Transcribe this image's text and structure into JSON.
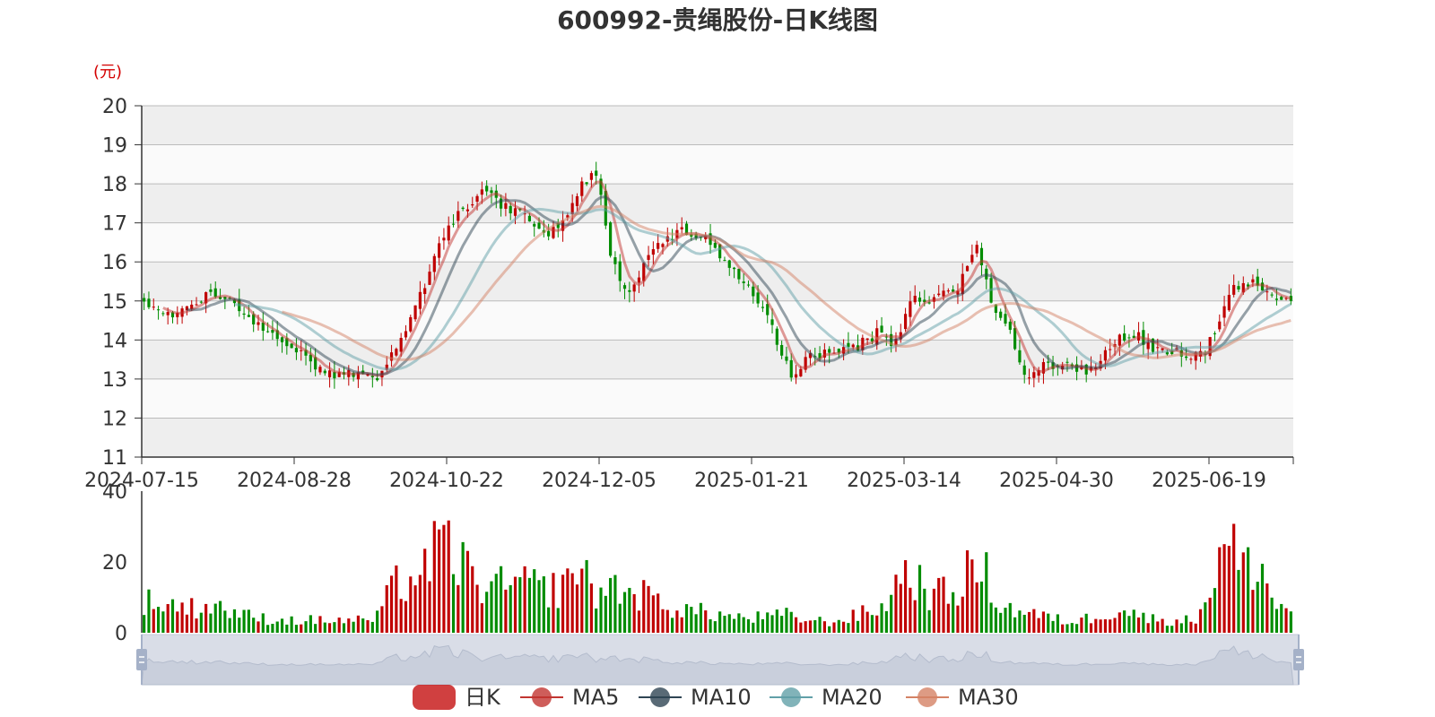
{
  "colors": {
    "up": "#c00000",
    "down": "#008c00",
    "ma5": "#c23531",
    "ma10": "#2f4554",
    "ma20": "#61a0a8",
    "ma30": "#d48265",
    "band_dark": "#eeeeee",
    "band_light": "#fafafa",
    "axis": "#333333",
    "grid": "#bbbbbb",
    "slider_fill": "#d9dde7",
    "unit": "#d40000"
  },
  "chart_data": {
    "type": "candlestick",
    "title": "600992-贵绳股份-日K线图",
    "price_unit": "(元)",
    "price_axis": {
      "min": 11,
      "max": 20,
      "ticks": [
        "11",
        "12",
        "13",
        "14",
        "15",
        "16",
        "17",
        "18",
        "19",
        "20"
      ]
    },
    "volume_axis": {
      "min": 0,
      "max": 40,
      "ticks": [
        "0",
        "20",
        "40"
      ]
    },
    "x_tick_labels": [
      "2024-07-15",
      "2024-08-28",
      "2024-10-22",
      "2024-12-05",
      "2025-01-21",
      "2025-03-14",
      "2025-04-30",
      "2025-06-19"
    ],
    "trading_days": 242,
    "price_anchors": [
      [
        0,
        15.0
      ],
      [
        6,
        14.6
      ],
      [
        12,
        15.0
      ],
      [
        18,
        15.2
      ],
      [
        24,
        14.8
      ],
      [
        30,
        14.2
      ],
      [
        36,
        13.9
      ],
      [
        42,
        13.3
      ],
      [
        48,
        13.1
      ],
      [
        54,
        13.1
      ],
      [
        58,
        13.0
      ],
      [
        63,
        14.0
      ],
      [
        68,
        15.0
      ],
      [
        73,
        16.5
      ],
      [
        78,
        17.2
      ],
      [
        84,
        17.9
      ],
      [
        88,
        17.5
      ],
      [
        94,
        17.2
      ],
      [
        100,
        16.7
      ],
      [
        104,
        17.0
      ],
      [
        108,
        18.0
      ],
      [
        112,
        18.2
      ],
      [
        116,
        16.0
      ],
      [
        120,
        15.1
      ],
      [
        126,
        16.4
      ],
      [
        132,
        16.8
      ],
      [
        138,
        16.7
      ],
      [
        144,
        16.0
      ],
      [
        150,
        15.3
      ],
      [
        156,
        14.2
      ],
      [
        160,
        13.1
      ],
      [
        164,
        13.5
      ],
      [
        170,
        13.7
      ],
      [
        176,
        13.8
      ],
      [
        182,
        14.2
      ],
      [
        186,
        13.9
      ],
      [
        190,
        15.1
      ],
      [
        196,
        15.0
      ],
      [
        202,
        15.4
      ],
      [
        206,
        16.5
      ],
      [
        210,
        15.0
      ],
      [
        214,
        14.3
      ],
      [
        218,
        13.0
      ],
      [
        222,
        13.4
      ],
      [
        228,
        13.3
      ],
      [
        234,
        13.2
      ],
      [
        240,
        14.0
      ],
      [
        246,
        14.1
      ],
      [
        250,
        13.8
      ],
      [
        256,
        13.7
      ],
      [
        262,
        13.6
      ],
      [
        266,
        14.5
      ],
      [
        270,
        15.3
      ],
      [
        276,
        15.5
      ],
      [
        280,
        15.0
      ],
      [
        284,
        15.0
      ]
    ],
    "volume_anchors": [
      [
        0,
        9
      ],
      [
        6,
        8
      ],
      [
        12,
        7
      ],
      [
        18,
        8
      ],
      [
        24,
        5
      ],
      [
        30,
        4
      ],
      [
        36,
        3.5
      ],
      [
        42,
        3.5
      ],
      [
        48,
        3.5
      ],
      [
        54,
        3.5
      ],
      [
        58,
        4
      ],
      [
        62,
        13
      ],
      [
        68,
        16
      ],
      [
        72,
        22
      ],
      [
        76,
        24
      ],
      [
        80,
        18
      ],
      [
        86,
        12
      ],
      [
        92,
        14
      ],
      [
        98,
        13
      ],
      [
        104,
        12
      ],
      [
        108,
        20
      ],
      [
        112,
        11
      ],
      [
        116,
        13
      ],
      [
        120,
        12
      ],
      [
        126,
        10
      ],
      [
        132,
        7
      ],
      [
        138,
        6
      ],
      [
        144,
        5
      ],
      [
        150,
        4
      ],
      [
        156,
        4.5
      ],
      [
        160,
        5
      ],
      [
        166,
        3.5
      ],
      [
        172,
        3
      ],
      [
        178,
        5
      ],
      [
        184,
        7
      ],
      [
        190,
        18
      ],
      [
        196,
        11
      ],
      [
        202,
        11
      ],
      [
        206,
        18
      ],
      [
        210,
        16
      ],
      [
        214,
        7
      ],
      [
        220,
        6
      ],
      [
        226,
        4
      ],
      [
        232,
        3
      ],
      [
        238,
        5
      ],
      [
        244,
        7
      ],
      [
        250,
        4
      ],
      [
        256,
        3.5
      ],
      [
        262,
        3.5
      ],
      [
        266,
        13
      ],
      [
        270,
        26
      ],
      [
        274,
        18
      ],
      [
        278,
        20
      ],
      [
        282,
        8
      ],
      [
        286,
        6
      ]
    ],
    "series": [
      {
        "name": "日K"
      },
      {
        "name": "MA5"
      },
      {
        "name": "MA10"
      },
      {
        "name": "MA20"
      },
      {
        "name": "MA30"
      }
    ]
  }
}
